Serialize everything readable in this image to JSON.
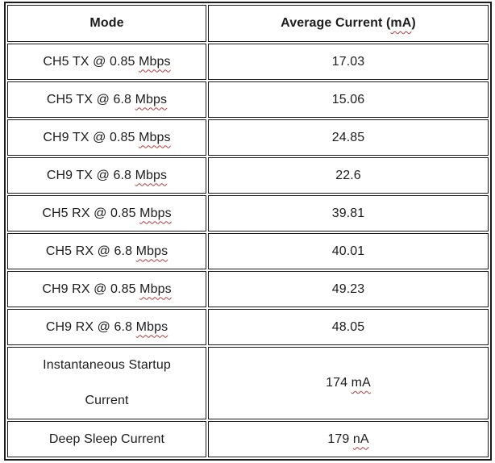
{
  "colors": {
    "background": "#ffffff",
    "table_border": "#1a1a1a",
    "text": "#1c1c1e",
    "spell_check_squiggle": "#b23b3b"
  },
  "table": {
    "header": {
      "mode": [
        {
          "text": "Mode"
        }
      ],
      "current": [
        {
          "text": "Average Current ("
        },
        {
          "text": "mA",
          "spell_error": true
        },
        {
          "text": ")"
        }
      ]
    },
    "rows": [
      {
        "mode": [
          {
            "text": "CH5 TX @ 0.85 "
          },
          {
            "text": "Mbps",
            "spell_error": true
          }
        ],
        "current": [
          {
            "text": "17.03"
          }
        ]
      },
      {
        "mode": [
          {
            "text": "CH5 TX @ 6.8 "
          },
          {
            "text": "Mbps",
            "spell_error": true
          }
        ],
        "current": [
          {
            "text": "15.06"
          }
        ]
      },
      {
        "mode": [
          {
            "text": "CH9 TX @ 0.85 "
          },
          {
            "text": "Mbps",
            "spell_error": true
          }
        ],
        "current": [
          {
            "text": "24.85"
          }
        ]
      },
      {
        "mode": [
          {
            "text": "CH9 TX @ 6.8 "
          },
          {
            "text": "Mbps",
            "spell_error": true
          }
        ],
        "current": [
          {
            "text": "22.6"
          }
        ]
      },
      {
        "mode": [
          {
            "text": "CH5 RX @ 0.85 "
          },
          {
            "text": "Mbps",
            "spell_error": true
          }
        ],
        "current": [
          {
            "text": "39.81"
          }
        ]
      },
      {
        "mode": [
          {
            "text": "CH5 RX @ 6.8 "
          },
          {
            "text": "Mbps",
            "spell_error": true
          }
        ],
        "current": [
          {
            "text": "40.01"
          }
        ]
      },
      {
        "mode": [
          {
            "text": "CH9 RX @ 0.85 "
          },
          {
            "text": "Mbps",
            "spell_error": true
          }
        ],
        "current": [
          {
            "text": "49.23"
          }
        ]
      },
      {
        "mode": [
          {
            "text": "CH9 RX @ 6.8 "
          },
          {
            "text": "Mbps",
            "spell_error": true
          }
        ],
        "current": [
          {
            "text": "48.05"
          }
        ]
      },
      {
        "tall": true,
        "mode": [
          {
            "text": "Instantaneous Startup"
          },
          {
            "break": true
          },
          {
            "text": "Current"
          }
        ],
        "current": [
          {
            "text": "174 "
          },
          {
            "text": "mA",
            "spell_error": true
          }
        ]
      },
      {
        "mode": [
          {
            "text": "Deep Sleep Current"
          }
        ],
        "current": [
          {
            "text": "179 "
          },
          {
            "text": "nA",
            "spell_error": true
          }
        ]
      }
    ]
  },
  "chart_data": {
    "type": "table",
    "title": "Average Current (mA)",
    "columns": [
      "Mode",
      "Average Current (mA)"
    ],
    "rows": [
      [
        "CH5 TX @ 0.85 Mbps",
        "17.03"
      ],
      [
        "CH5 TX @ 6.8 Mbps",
        "15.06"
      ],
      [
        "CH9 TX @ 0.85 Mbps",
        "24.85"
      ],
      [
        "CH9 TX @ 6.8 Mbps",
        "22.6"
      ],
      [
        "CH5 RX @ 0.85 Mbps",
        "39.81"
      ],
      [
        "CH5 RX @ 6.8 Mbps",
        "40.01"
      ],
      [
        "CH9 RX @ 0.85 Mbps",
        "49.23"
      ],
      [
        "CH9 RX @ 6.8 Mbps",
        "48.05"
      ],
      [
        "Instantaneous Startup Current",
        "174 mA"
      ],
      [
        "Deep Sleep Current",
        "179 nA"
      ]
    ]
  }
}
